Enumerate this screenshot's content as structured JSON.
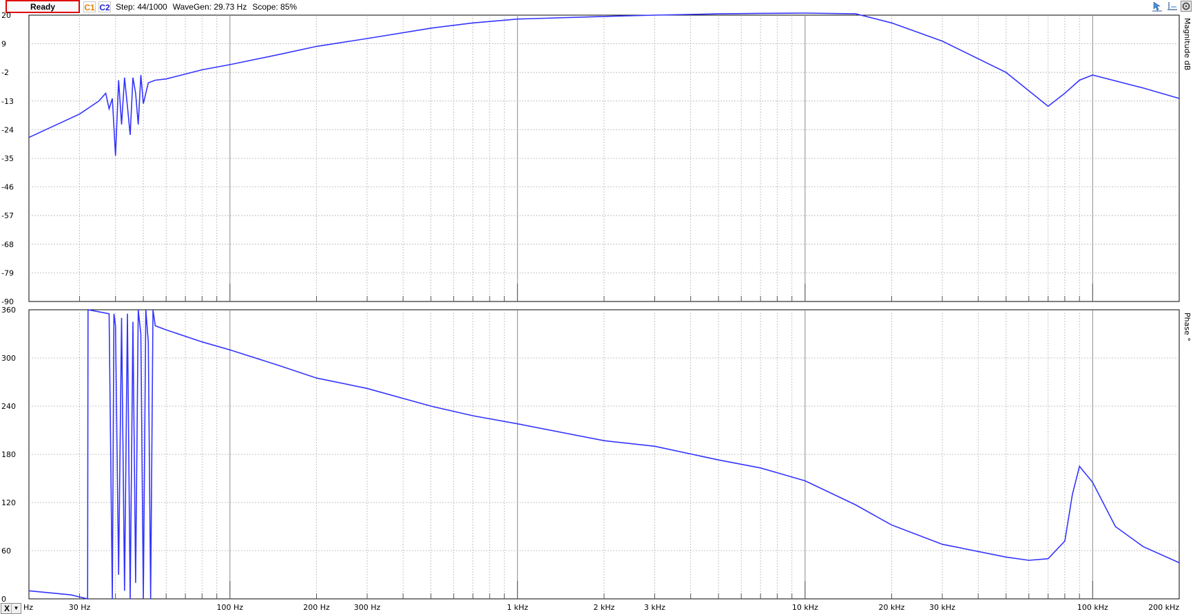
{
  "toolbar": {
    "status": "Ready",
    "c1_label": "C1",
    "c2_label": "C2",
    "step": "Step: 44/1000",
    "wavegen": "WaveGen: 29.73 Hz",
    "scope": "Scope: 85%",
    "icons": [
      "cursor-icon",
      "baseline-icon",
      "settings-icon"
    ]
  },
  "x_selector": {
    "label": "X"
  },
  "colors": {
    "trace": "#3333ff",
    "grid": "#b4b4b4",
    "axis": "#000000",
    "background": "#ffffff"
  },
  "chart_data": [
    {
      "type": "line",
      "ylabel": "Magnitude dB",
      "ylim": [
        -90,
        20
      ],
      "yticks": [
        20,
        9,
        -2,
        -13,
        -24,
        -35,
        -46,
        -57,
        -68,
        -79,
        -90
      ],
      "xscale": "log",
      "xlim": [
        20,
        200000
      ],
      "x_unit": "Hz",
      "grid": true,
      "series": [
        {
          "x": [
            20,
            30,
            35,
            37,
            38,
            39,
            40,
            41,
            42,
            43,
            44,
            45,
            46,
            47,
            48,
            49,
            50,
            52,
            55,
            60,
            80,
            100,
            150,
            200,
            300,
            500,
            700,
            1000,
            2000,
            3000,
            5000,
            7000,
            10000,
            15000,
            20000,
            30000,
            50000,
            70000,
            80000,
            90000,
            100000,
            150000,
            200000
          ],
          "values": [
            -27,
            -18,
            -13,
            -10,
            -16,
            -12,
            -34,
            -5,
            -22,
            -4,
            -15,
            -26,
            -4,
            -10,
            -22,
            -3,
            -14,
            -6,
            -5,
            -4.5,
            -1,
            1,
            5,
            8,
            11,
            15,
            17,
            18.5,
            19.5,
            20,
            20.5,
            20.7,
            20.8,
            20.5,
            17,
            10,
            -2,
            -15,
            -10,
            -5,
            -3,
            -8,
            -12
          ]
        }
      ]
    },
    {
      "type": "line",
      "ylabel": "Phase °",
      "ylim": [
        0,
        360
      ],
      "yticks": [
        360,
        300,
        240,
        180,
        120,
        60,
        0
      ],
      "xscale": "log",
      "xlim": [
        20,
        200000
      ],
      "x_unit": "Hz",
      "xticks": [
        {
          "v": 20,
          "label": "Hz"
        },
        {
          "v": 30,
          "label": "30 Hz"
        },
        {
          "v": 100,
          "label": "100 Hz"
        },
        {
          "v": 200,
          "label": "200 Hz"
        },
        {
          "v": 300,
          "label": "300 Hz"
        },
        {
          "v": 1000,
          "label": "1 kHz"
        },
        {
          "v": 2000,
          "label": "2 kHz"
        },
        {
          "v": 3000,
          "label": "3 kHz"
        },
        {
          "v": 10000,
          "label": "10 kHz"
        },
        {
          "v": 20000,
          "label": "20 kHz"
        },
        {
          "v": 30000,
          "label": "30 kHz"
        },
        {
          "v": 100000,
          "label": "100 kHz"
        },
        {
          "v": 200000,
          "label": "200 kHz"
        }
      ],
      "grid": true,
      "series": [
        {
          "x": [
            20,
            28,
            32,
            32.1,
            38,
            39,
            39.5,
            40,
            41,
            42,
            43,
            44,
            45,
            46,
            47,
            48,
            49,
            50,
            51,
            52,
            53,
            54,
            55,
            60,
            80,
            100,
            150,
            200,
            300,
            500,
            700,
            1000,
            2000,
            3000,
            5000,
            7000,
            10000,
            15000,
            20000,
            30000,
            50000,
            60000,
            70000,
            80000,
            85000,
            90000,
            100000,
            120000,
            150000,
            200000
          ],
          "values": [
            10,
            5,
            0,
            360,
            355,
            0,
            355,
            340,
            30,
            350,
            10,
            355,
            0,
            345,
            20,
            360,
            330,
            0,
            360,
            320,
            0,
            360,
            340,
            335,
            320,
            310,
            290,
            275,
            262,
            240,
            228,
            218,
            197,
            190,
            173,
            163,
            147,
            117,
            92,
            68,
            52,
            48,
            50,
            72,
            130,
            165,
            145,
            90,
            65,
            45
          ]
        }
      ]
    }
  ]
}
